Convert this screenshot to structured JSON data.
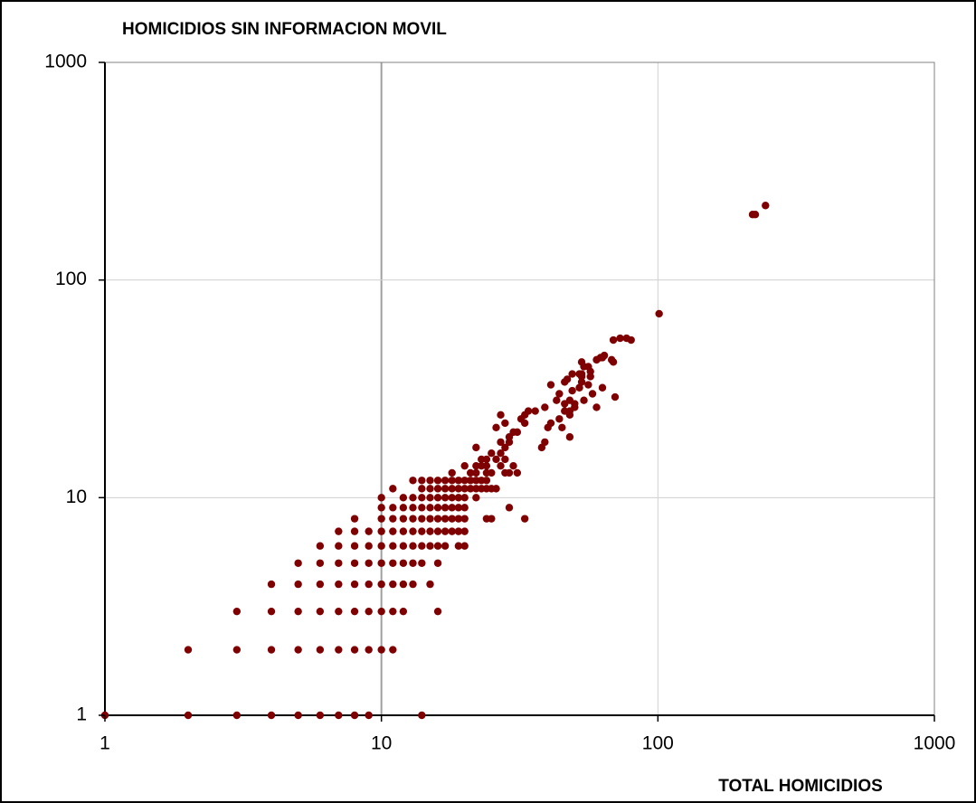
{
  "chart_data": {
    "type": "scatter",
    "title": "HOMICIDIOS SIN INFORMACION MOVIL",
    "x_label": "TOTAL HOMICIDIOS",
    "color": "#7f0000",
    "log_x": true,
    "log_y": true,
    "grid": true,
    "xlim": [
      1,
      1000
    ],
    "ylim": [
      1,
      1000
    ],
    "xticks": [
      1,
      10,
      100,
      1000
    ],
    "yticks": [
      1,
      10,
      100,
      1000
    ],
    "x": [
      1,
      2,
      3,
      4,
      5,
      6,
      7,
      8,
      9,
      14,
      2,
      3,
      4,
      5,
      6,
      7,
      8,
      9,
      10,
      11,
      3,
      4,
      5,
      6,
      7,
      8,
      9,
      10,
      11,
      12,
      16,
      4,
      5,
      6,
      7,
      8,
      9,
      10,
      11,
      12,
      13,
      15,
      5,
      6,
      7,
      8,
      9,
      10,
      11,
      12,
      13,
      14,
      16,
      6,
      7,
      8,
      9,
      10,
      11,
      12,
      13,
      14,
      15,
      16,
      17,
      19,
      20,
      7,
      8,
      9,
      10,
      11,
      12,
      13,
      14,
      15,
      16,
      17,
      18,
      19,
      20,
      8,
      10,
      11,
      12,
      13,
      14,
      15,
      16,
      17,
      18,
      19,
      20,
      24,
      25,
      33,
      10,
      11,
      12,
      13,
      14,
      15,
      16,
      17,
      18,
      19,
      20,
      29,
      10,
      12,
      13,
      14,
      15,
      16,
      17,
      18,
      19,
      20,
      22,
      11,
      14,
      15,
      16,
      17,
      18,
      19,
      20,
      21,
      22,
      23,
      24,
      25,
      26,
      13,
      14,
      15,
      16,
      17,
      18,
      19,
      20,
      21,
      22,
      23,
      24,
      18,
      21,
      22,
      24,
      25,
      28,
      29,
      31,
      20,
      22,
      23,
      24,
      27,
      30,
      23,
      24,
      26,
      28,
      25,
      27,
      22,
      28,
      38,
      27,
      29,
      39,
      29,
      48,
      30,
      31,
      26,
      40,
      45,
      28,
      33,
      41,
      32,
      44,
      27,
      33,
      48,
      34,
      36,
      46,
      48,
      39,
      50,
      60,
      46,
      50,
      43,
      48,
      54,
      70,
      44,
      58,
      49,
      52,
      63,
      41,
      56,
      46,
      53,
      47,
      53,
      57,
      49,
      53,
      52,
      57,
      54,
      56,
      53,
      69,
      60,
      68,
      63,
      62,
      64,
      69,
      80,
      73,
      77,
      101,
      220,
      225,
      245
    ],
    "values": [
      1,
      1,
      1,
      1,
      1,
      1,
      1,
      1,
      1,
      1,
      2,
      2,
      2,
      2,
      2,
      2,
      2,
      2,
      2,
      2,
      3,
      3,
      3,
      3,
      3,
      3,
      3,
      3,
      3,
      3,
      3,
      4,
      4,
      4,
      4,
      4,
      4,
      4,
      4,
      4,
      4,
      4,
      5,
      5,
      5,
      5,
      5,
      5,
      5,
      5,
      5,
      5,
      5,
      6,
      6,
      6,
      6,
      6,
      6,
      6,
      6,
      6,
      6,
      6,
      6,
      6,
      6,
      7,
      7,
      7,
      7,
      7,
      7,
      7,
      7,
      7,
      7,
      7,
      7,
      7,
      7,
      8,
      8,
      8,
      8,
      8,
      8,
      8,
      8,
      8,
      8,
      8,
      8,
      8,
      8,
      8,
      9,
      9,
      9,
      9,
      9,
      9,
      9,
      9,
      9,
      9,
      9,
      9,
      10,
      10,
      10,
      10,
      10,
      10,
      10,
      10,
      10,
      10,
      10,
      11,
      11,
      11,
      11,
      11,
      11,
      11,
      11,
      11,
      11,
      11,
      11,
      11,
      11,
      12,
      12,
      12,
      12,
      12,
      12,
      12,
      12,
      12,
      12,
      12,
      12,
      13,
      13,
      13,
      13,
      13,
      13,
      13,
      13,
      14,
      14,
      14,
      14,
      14,
      14,
      15,
      15,
      15,
      15,
      16,
      16,
      17,
      17,
      17,
      18,
      18,
      18,
      19,
      19,
      20,
      20,
      21,
      21,
      21,
      22,
      22,
      22,
      23,
      23,
      24,
      24,
      24,
      25,
      25,
      25,
      25,
      26,
      26,
      26,
      27,
      27,
      28,
      28,
      28,
      29,
      30,
      30,
      31,
      32,
      32,
      33,
      33,
      34,
      34,
      35,
      36,
      36,
      37,
      37,
      37,
      38,
      40,
      40,
      42,
      42,
      43,
      43,
      44,
      44,
      45,
      53,
      53,
      54,
      54,
      70,
      200,
      200,
      220
    ]
  }
}
